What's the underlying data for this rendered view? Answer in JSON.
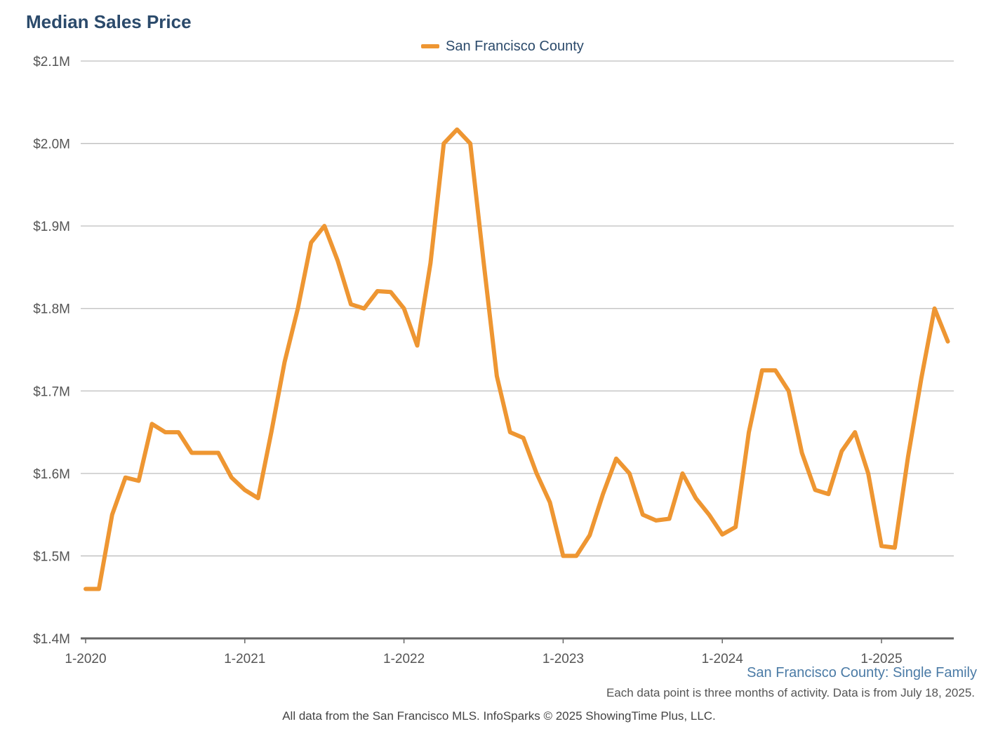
{
  "colors": {
    "title": "#2b4a6b",
    "series_line": "#ee9632",
    "gridline": "#bdbdbd",
    "axis_line": "#666666",
    "tick_label": "#555555",
    "footer_series": "#4b7ba6",
    "footer_text": "#555555"
  },
  "footer": {
    "series_label": "San Francisco County: Single Family",
    "note": "Each data point is three months of activity. Data is from July 18, 2025.",
    "credit": "All data from the San Francisco MLS. InfoSparks © 2025 ShowingTime Plus, LLC."
  },
  "chart_data": {
    "type": "line",
    "title": "Median Sales Price",
    "xlabel": "",
    "ylabel": "",
    "legend_position": "top-center",
    "grid": true,
    "ylim": [
      1400000,
      2100000
    ],
    "y_ticks": [
      {
        "value": 1400000,
        "label": "$1.4M"
      },
      {
        "value": 1500000,
        "label": "$1.5M"
      },
      {
        "value": 1600000,
        "label": "$1.6M"
      },
      {
        "value": 1700000,
        "label": "$1.7M"
      },
      {
        "value": 1800000,
        "label": "$1.8M"
      },
      {
        "value": 1900000,
        "label": "$1.9M"
      },
      {
        "value": 2000000,
        "label": "$2.0M"
      },
      {
        "value": 2100000,
        "label": "$2.1M"
      }
    ],
    "x_ticks": [
      "1-2020",
      "1-2021",
      "1-2022",
      "1-2023",
      "1-2024",
      "1-2025"
    ],
    "x": [
      "2020-01",
      "2020-02",
      "2020-03",
      "2020-04",
      "2020-05",
      "2020-06",
      "2020-07",
      "2020-08",
      "2020-09",
      "2020-10",
      "2020-11",
      "2020-12",
      "2021-01",
      "2021-02",
      "2021-03",
      "2021-04",
      "2021-05",
      "2021-06",
      "2021-07",
      "2021-08",
      "2021-09",
      "2021-10",
      "2021-11",
      "2021-12",
      "2022-01",
      "2022-02",
      "2022-03",
      "2022-04",
      "2022-05",
      "2022-06",
      "2022-07",
      "2022-08",
      "2022-09",
      "2022-10",
      "2022-11",
      "2022-12",
      "2023-01",
      "2023-02",
      "2023-03",
      "2023-04",
      "2023-05",
      "2023-06",
      "2023-07",
      "2023-08",
      "2023-09",
      "2023-10",
      "2023-11",
      "2023-12",
      "2024-01",
      "2024-02",
      "2024-03",
      "2024-04",
      "2024-05",
      "2024-06",
      "2024-07",
      "2024-08",
      "2024-09",
      "2024-10",
      "2024-11",
      "2024-12",
      "2025-01",
      "2025-02",
      "2025-03",
      "2025-04",
      "2025-05",
      "2025-06"
    ],
    "series": [
      {
        "name": "San Francisco County",
        "values": [
          1460000,
          1460000,
          1550000,
          1595000,
          1591000,
          1660000,
          1650000,
          1650000,
          1625000,
          1625000,
          1625000,
          1595000,
          1580000,
          1570000,
          1650000,
          1735000,
          1800000,
          1880000,
          1900000,
          1858000,
          1805000,
          1800000,
          1821000,
          1820000,
          1800000,
          1755000,
          1855000,
          2000000,
          2017000,
          2000000,
          1857000,
          1718000,
          1650000,
          1643000,
          1600000,
          1565000,
          1500000,
          1500000,
          1525000,
          1575000,
          1618000,
          1600000,
          1550000,
          1543000,
          1545000,
          1600000,
          1570000,
          1550000,
          1526000,
          1535000,
          1650000,
          1725000,
          1725000,
          1700000,
          1625000,
          1580000,
          1575000,
          1627000,
          1650000,
          1600000,
          1512000,
          1510000,
          1620000,
          1715000,
          1800000,
          1760000
        ]
      }
    ]
  }
}
